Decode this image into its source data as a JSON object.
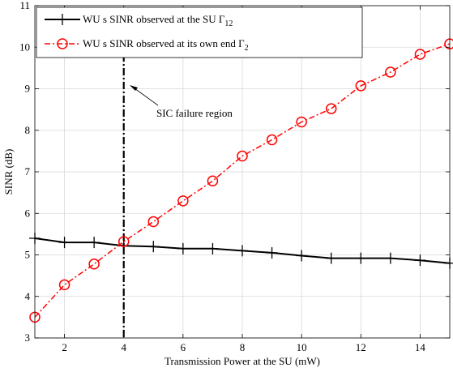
{
  "chart_data": {
    "type": "line",
    "xlabel": "Transmission Power at the SU (mW)",
    "ylabel": "SINR (dB)",
    "xlim": [
      1,
      15
    ],
    "ylim": [
      3,
      11
    ],
    "xticks": [
      2,
      4,
      6,
      8,
      10,
      12,
      14
    ],
    "yticks": [
      3,
      4,
      5,
      6,
      7,
      8,
      9,
      10,
      11
    ],
    "grid": true,
    "legend_position": "top-left",
    "series": [
      {
        "name_text": "WU s SINR observed at the SU Γ",
        "name_sub": "12",
        "color": "#000000",
        "marker": "plus",
        "line_style": "solid",
        "x": [
          1,
          2,
          3,
          4,
          5,
          6,
          7,
          8,
          9,
          10,
          11,
          12,
          13,
          14,
          15
        ],
        "y": [
          5.4,
          5.3,
          5.3,
          5.22,
          5.2,
          5.15,
          5.15,
          5.1,
          5.05,
          4.98,
          4.92,
          4.92,
          4.92,
          4.87,
          4.8
        ]
      },
      {
        "name_text": "WU s SINR observed at its own end  Γ",
        "name_sub": "2",
        "color": "#ff0000",
        "marker": "circle",
        "line_style": "dash-dot",
        "x": [
          1,
          2,
          3,
          4,
          5,
          6,
          7,
          8,
          9,
          10,
          11,
          12,
          13,
          14,
          15
        ],
        "y": [
          3.5,
          4.28,
          4.78,
          5.32,
          5.8,
          6.3,
          6.78,
          7.38,
          7.77,
          8.2,
          8.52,
          9.07,
          9.4,
          9.83,
          10.08
        ]
      }
    ],
    "vline": {
      "x": 4
    },
    "annotation": {
      "text": "SIC failure region"
    }
  }
}
